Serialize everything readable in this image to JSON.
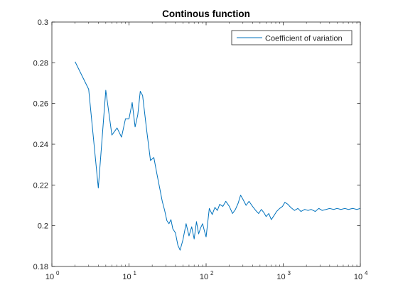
{
  "chart_data": {
    "type": "line",
    "title": "Continous function",
    "xlabel": "",
    "ylabel": "",
    "x_scale": "log",
    "xlim": [
      1,
      10000
    ],
    "ylim": [
      0.18,
      0.3
    ],
    "x_tick_values": [
      1,
      10,
      100,
      1000,
      10000
    ],
    "x_tick_labels": [
      {
        "base": "10",
        "exp": "0"
      },
      {
        "base": "10",
        "exp": "1"
      },
      {
        "base": "10",
        "exp": "2"
      },
      {
        "base": "10",
        "exp": "3"
      },
      {
        "base": "10",
        "exp": "4"
      }
    ],
    "y_tick_values": [
      0.18,
      0.2,
      0.22,
      0.24,
      0.26,
      0.28,
      0.3
    ],
    "y_tick_labels": [
      "0.18",
      "0.2",
      "0.22",
      "0.24",
      "0.26",
      "0.28",
      "0.3"
    ],
    "grid": false,
    "legend_position": "top-right",
    "series": [
      {
        "name": "Coefficient of variation",
        "color": "#0072bd",
        "x": [
          2,
          3,
          4,
          5,
          6,
          7,
          8,
          9,
          10,
          11,
          12,
          13,
          14,
          15,
          17,
          19,
          21,
          23,
          25,
          27,
          29,
          31,
          33,
          35,
          37,
          40,
          43,
          46,
          50,
          55,
          60,
          65,
          70,
          75,
          80,
          85,
          90,
          95,
          100,
          110,
          120,
          130,
          140,
          150,
          165,
          180,
          200,
          220,
          240,
          260,
          280,
          300,
          330,
          360,
          400,
          440,
          480,
          520,
          560,
          600,
          650,
          700,
          760,
          820,
          900,
          980,
          1050,
          1150,
          1250,
          1400,
          1550,
          1700,
          1900,
          2100,
          2300,
          2600,
          2900,
          3200,
          3600,
          4000,
          4500,
          5000,
          5600,
          6300,
          7000,
          8000,
          9000,
          10000
        ],
        "y": [
          0.2805,
          0.267,
          0.2185,
          0.2665,
          0.2445,
          0.248,
          0.2435,
          0.2525,
          0.2525,
          0.2605,
          0.2485,
          0.2545,
          0.266,
          0.264,
          0.2465,
          0.232,
          0.2335,
          0.2255,
          0.2185,
          0.212,
          0.2075,
          0.2025,
          0.201,
          0.203,
          0.1985,
          0.1965,
          0.1905,
          0.188,
          0.193,
          0.201,
          0.195,
          0.1995,
          0.1935,
          0.202,
          0.196,
          0.199,
          0.201,
          0.1975,
          0.1945,
          0.2085,
          0.2055,
          0.209,
          0.2075,
          0.2105,
          0.2095,
          0.212,
          0.2095,
          0.206,
          0.208,
          0.211,
          0.215,
          0.213,
          0.21,
          0.212,
          0.2095,
          0.2075,
          0.206,
          0.208,
          0.2065,
          0.2045,
          0.206,
          0.203,
          0.205,
          0.207,
          0.2085,
          0.2095,
          0.2115,
          0.2105,
          0.209,
          0.2075,
          0.2085,
          0.207,
          0.208,
          0.2075,
          0.208,
          0.207,
          0.2085,
          0.2075,
          0.208,
          0.2085,
          0.208,
          0.2085,
          0.208,
          0.2085,
          0.208,
          0.2085,
          0.208,
          0.2085
        ]
      }
    ]
  }
}
